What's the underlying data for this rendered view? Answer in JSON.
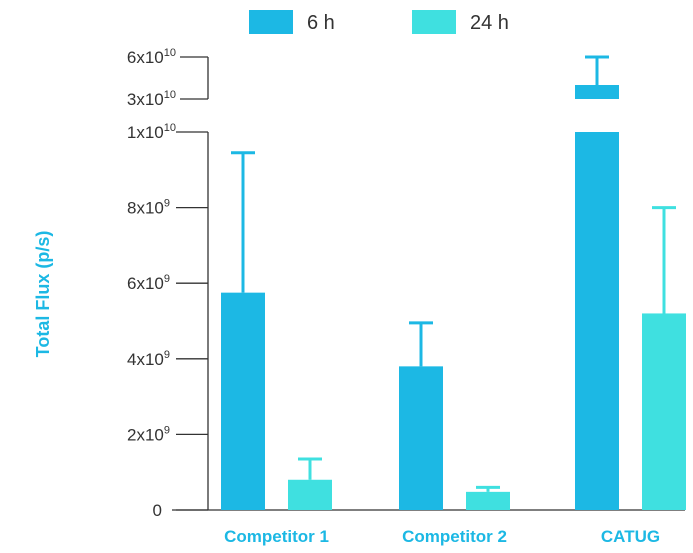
{
  "chart_data": {
    "type": "bar",
    "title": "",
    "xlabel": "",
    "ylabel": "Total Flux (p/s)",
    "categories": [
      "Competitor 1",
      "Competitor 2",
      "CATUG"
    ],
    "series": [
      {
        "name": "6 h",
        "values": [
          5750000000.0,
          3800000000.0,
          40000000000.0
        ],
        "error_upper": [
          9450000000.0,
          4950000000.0,
          60000000000.0
        ]
      },
      {
        "name": "24 h",
        "values": [
          800000000.0,
          480000000.0,
          5200000000.0
        ],
        "error_upper": [
          1350000000.0,
          600000000.0,
          8000000000.0
        ]
      }
    ],
    "y_axis": {
      "scale": "broken",
      "lower_range": [
        0,
        10000000000.0
      ],
      "upper_range": [
        10000000000.0,
        60000000000.0
      ],
      "tick_values_lower": [
        0,
        2000000000.0,
        4000000000.0,
        6000000000.0,
        8000000000.0,
        10000000000.0
      ],
      "tick_values_upper": [
        30000000000.0,
        60000000000.0
      ],
      "tick_labels": [
        {
          "value": 0,
          "base": "0",
          "exp": ""
        },
        {
          "value": 2000000000.0,
          "base": "2x10",
          "exp": "9"
        },
        {
          "value": 4000000000.0,
          "base": "4x10",
          "exp": "9"
        },
        {
          "value": 6000000000.0,
          "base": "6x10",
          "exp": "9"
        },
        {
          "value": 8000000000.0,
          "base": "8x10",
          "exp": "9"
        },
        {
          "value": 10000000000.0,
          "base": "1x10",
          "exp": "10"
        },
        {
          "value": 30000000000.0,
          "base": "3x10",
          "exp": "10"
        },
        {
          "value": 60000000000.0,
          "base": "6x10",
          "exp": "10"
        }
      ]
    },
    "legend_position": "top-center",
    "grid": false,
    "colors": {
      "series_6h": "#1cb8e4",
      "series_24h": "#3fe0e0",
      "axis": "#333333",
      "category_label": "#1cb8e4",
      "ylabel": "#1cb8e4",
      "tick_label": "#333333"
    }
  }
}
